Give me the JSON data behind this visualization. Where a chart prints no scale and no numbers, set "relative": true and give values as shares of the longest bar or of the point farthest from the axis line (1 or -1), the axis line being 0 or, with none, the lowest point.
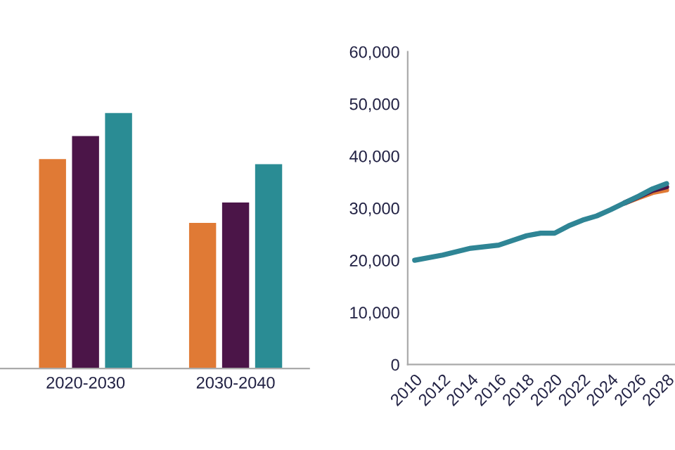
{
  "chart_data": [
    {
      "type": "bar",
      "relative": true,
      "categories": [
        "2020-2030",
        "2030-2040"
      ],
      "series": [
        {
          "color": "#e07a35",
          "values": [
            0.82,
            0.57
          ]
        },
        {
          "color": "#4b1548",
          "values": [
            0.91,
            0.65
          ]
        },
        {
          "color": "#2a8c94",
          "values": [
            1,
            0.8
          ]
        }
      ]
    },
    {
      "type": "line",
      "x": [
        2010,
        2012,
        2014,
        2015,
        2016,
        2018,
        2019,
        2020,
        2021,
        2022,
        2023,
        2024,
        2025,
        2026,
        2027,
        2028
      ],
      "series": [
        {
          "color": "#e07a35",
          "values": [
            null,
            null,
            null,
            null,
            null,
            null,
            null,
            null,
            null,
            null,
            null,
            null,
            31000,
            32000,
            33000,
            33500
          ]
        },
        {
          "color": "#4b1548",
          "values": [
            null,
            null,
            null,
            null,
            null,
            null,
            null,
            null,
            null,
            null,
            null,
            null,
            31000,
            32200,
            33400,
            34100
          ]
        },
        {
          "color": "#2f8595",
          "values": [
            20000,
            21000,
            22300,
            22600,
            22900,
            24700,
            25200,
            25200,
            26600,
            27700,
            28500,
            29700,
            31000,
            32300,
            33700,
            34700
          ]
        }
      ],
      "xlim": [
        2009.5,
        2028.6
      ],
      "xticks": [
        2010,
        2012,
        2014,
        2016,
        2018,
        2020,
        2022,
        2024,
        2026,
        2028
      ],
      "ylim": [
        0,
        60000
      ],
      "yticks": [
        {
          "value": 0,
          "label": "0"
        },
        {
          "value": 10000,
          "label": "10,000"
        },
        {
          "value": 20000,
          "label": "20,000"
        },
        {
          "value": 30000,
          "label": "30,000"
        },
        {
          "value": 40000,
          "label": "40,000"
        },
        {
          "value": 50000,
          "label": "50,000"
        },
        {
          "value": 60000,
          "label": "60,000"
        }
      ]
    }
  ]
}
